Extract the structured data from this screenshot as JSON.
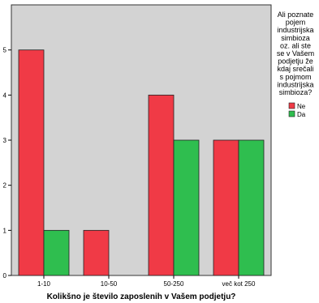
{
  "chart_data": {
    "type": "bar",
    "title": "",
    "xlabel": "Kolikšno je število zaposlenih v Vašem podjetju?",
    "ylabel": "",
    "categories": [
      "1-10",
      "10-50",
      "50-250",
      "več kot 250"
    ],
    "series": [
      {
        "name": "Ne",
        "values": [
          5,
          1,
          4,
          3
        ],
        "color": "#f03a46"
      },
      {
        "name": "Da",
        "values": [
          1,
          0,
          3,
          3
        ],
        "color": "#2fbe4f"
      }
    ],
    "ylim": [
      0,
      6
    ],
    "yticks": [
      "0",
      "1",
      "2",
      "3",
      "4",
      "5"
    ],
    "legend": {
      "placement": "right",
      "title_lines": [
        "Ali poznate",
        "pojem",
        "industrijska",
        "simbioza",
        "oz. ali ste",
        "se v Vašem",
        "podjetju že",
        "kdaj srečali",
        "s pojmom",
        "industrijska",
        "simbioza?"
      ]
    },
    "plot_background": "#d3d3d3",
    "grid": false
  }
}
